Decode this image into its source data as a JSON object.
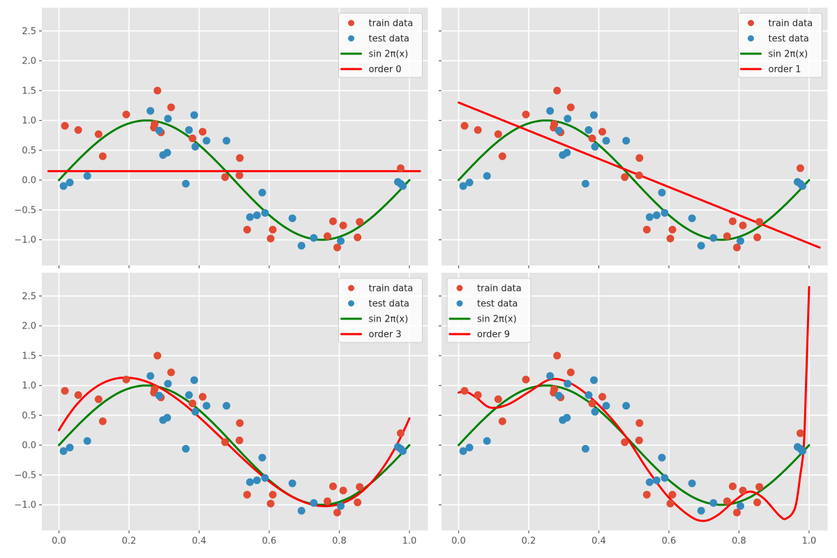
{
  "figure": {
    "background": "#ffffff",
    "panel_color": "#e5e5e5",
    "grid_color": "#ffffff",
    "tick_color": "#555555",
    "label_color": "#555555",
    "legend_background": "#efefef",
    "legend_border": "#cccccc",
    "legend_text_color": "#262626"
  },
  "chart_data": {
    "type": "scatter",
    "description": "2x2 grid of polynomial regression fits (order 0, 1, 3, 9) to noisy samples of sin(2*pi*x)",
    "grid": true,
    "xlim": [
      -0.049,
      1.052
    ],
    "ylim": [
      -1.43,
      2.89
    ],
    "x_ticks": {
      "values": [
        0.0,
        0.2,
        0.4,
        0.6,
        0.8,
        1.0
      ],
      "labels": [
        "0.0",
        "0.2",
        "0.4",
        "0.6",
        "0.8",
        "1.0"
      ]
    },
    "y_ticks": {
      "values": [
        2.5,
        2.0,
        1.5,
        1.0,
        0.5,
        0.0,
        -0.5,
        -1.0
      ],
      "labels": [
        "2.5",
        "2.0",
        "1.5",
        "1.0",
        "0.5",
        "0.0",
        "−0.5",
        "−1.0"
      ]
    },
    "train": {
      "label": "train data",
      "color": "#E24A33",
      "points": [
        [
          0.017,
          0.91
        ],
        [
          0.055,
          0.84
        ],
        [
          0.113,
          0.77
        ],
        [
          0.125,
          0.4
        ],
        [
          0.192,
          1.1
        ],
        [
          0.271,
          0.88
        ],
        [
          0.273,
          0.94
        ],
        [
          0.281,
          1.5
        ],
        [
          0.291,
          0.8
        ],
        [
          0.32,
          1.22
        ],
        [
          0.381,
          0.7
        ],
        [
          0.41,
          0.81
        ],
        [
          0.474,
          0.05
        ],
        [
          0.515,
          0.08
        ],
        [
          0.516,
          0.37
        ],
        [
          0.537,
          -0.83
        ],
        [
          0.604,
          -0.98
        ],
        [
          0.61,
          -0.83
        ],
        [
          0.766,
          -0.94
        ],
        [
          0.782,
          -0.69
        ],
        [
          0.794,
          -1.13
        ],
        [
          0.811,
          -0.76
        ],
        [
          0.852,
          -0.96
        ],
        [
          0.858,
          -0.7
        ],
        [
          0.975,
          0.2
        ]
      ]
    },
    "test": {
      "label": "test data",
      "color": "#348ABD",
      "points": [
        [
          0.013,
          -0.1
        ],
        [
          0.031,
          -0.04
        ],
        [
          0.081,
          0.07
        ],
        [
          0.261,
          1.16
        ],
        [
          0.286,
          0.83
        ],
        [
          0.297,
          0.42
        ],
        [
          0.309,
          0.46
        ],
        [
          0.311,
          1.03
        ],
        [
          0.362,
          -0.06
        ],
        [
          0.371,
          0.84
        ],
        [
          0.386,
          1.09
        ],
        [
          0.389,
          0.56
        ],
        [
          0.421,
          0.66
        ],
        [
          0.478,
          0.66
        ],
        [
          0.545,
          -0.62
        ],
        [
          0.565,
          -0.59
        ],
        [
          0.58,
          -0.21
        ],
        [
          0.588,
          -0.55
        ],
        [
          0.666,
          -0.64
        ],
        [
          0.692,
          -1.1
        ],
        [
          0.727,
          -0.97
        ],
        [
          0.804,
          -1.02
        ],
        [
          0.967,
          -0.03
        ],
        [
          0.975,
          -0.06
        ],
        [
          0.981,
          -0.1
        ]
      ]
    },
    "true_curve": {
      "label": "sin 2π(x)",
      "color": "#008000",
      "formula": "sin(2*pi*x)",
      "x_range": [
        0,
        1
      ]
    },
    "subplots": [
      {
        "name": "order-0",
        "fit_label": "order 0",
        "fit_color": "#ff0000",
        "fit": {
          "kind": "poly",
          "coeffs": [
            0.15
          ],
          "x_range": [
            -0.03,
            1.03
          ]
        },
        "legend_position": "upper-right",
        "show_y_tick_labels": true,
        "show_x_tick_labels": false
      },
      {
        "name": "order-1",
        "fit_label": "order 1",
        "fit_color": "#ff0000",
        "fit": {
          "kind": "poly",
          "coeffs": [
            1.3,
            -2.36
          ],
          "x_range": [
            0.0,
            1.03
          ]
        },
        "legend_position": "upper-right",
        "show_y_tick_labels": false,
        "show_x_tick_labels": false
      },
      {
        "name": "order-3",
        "fit_label": "order 3",
        "fit_color": "#ff0000",
        "fit": {
          "kind": "poly",
          "coeffs": [
            0.25,
            10.11,
            -33.23,
            23.32
          ],
          "x_range": [
            0.0,
            1.0
          ]
        },
        "legend_position": "upper-right",
        "show_y_tick_labels": true,
        "show_x_tick_labels": true
      },
      {
        "name": "order-9",
        "fit_label": "order 9",
        "fit_color": "#ff0000",
        "fit": {
          "kind": "points",
          "points": [
            [
              0.0,
              0.88
            ],
            [
              0.02,
              0.9
            ],
            [
              0.05,
              0.8
            ],
            [
              0.09,
              0.63
            ],
            [
              0.14,
              0.68
            ],
            [
              0.2,
              0.89
            ],
            [
              0.26,
              1.1
            ],
            [
              0.31,
              1.06
            ],
            [
              0.36,
              0.88
            ],
            [
              0.42,
              0.55
            ],
            [
              0.48,
              0.12
            ],
            [
              0.54,
              -0.42
            ],
            [
              0.6,
              -0.88
            ],
            [
              0.66,
              -1.19
            ],
            [
              0.7,
              -1.27
            ],
            [
              0.74,
              -1.17
            ],
            [
              0.79,
              -0.92
            ],
            [
              0.83,
              -0.78
            ],
            [
              0.87,
              -0.89
            ],
            [
              0.915,
              -1.18
            ],
            [
              0.935,
              -1.23
            ],
            [
              0.96,
              -1.05
            ],
            [
              0.975,
              -0.5
            ],
            [
              0.985,
              0.0
            ],
            [
              0.992,
              1.15
            ],
            [
              1.0,
              2.65
            ]
          ]
        },
        "legend_position": "upper-left",
        "show_y_tick_labels": false,
        "show_x_tick_labels": true
      }
    ],
    "legend_entries_order": [
      "train",
      "test",
      "true_curve",
      "fit"
    ]
  }
}
